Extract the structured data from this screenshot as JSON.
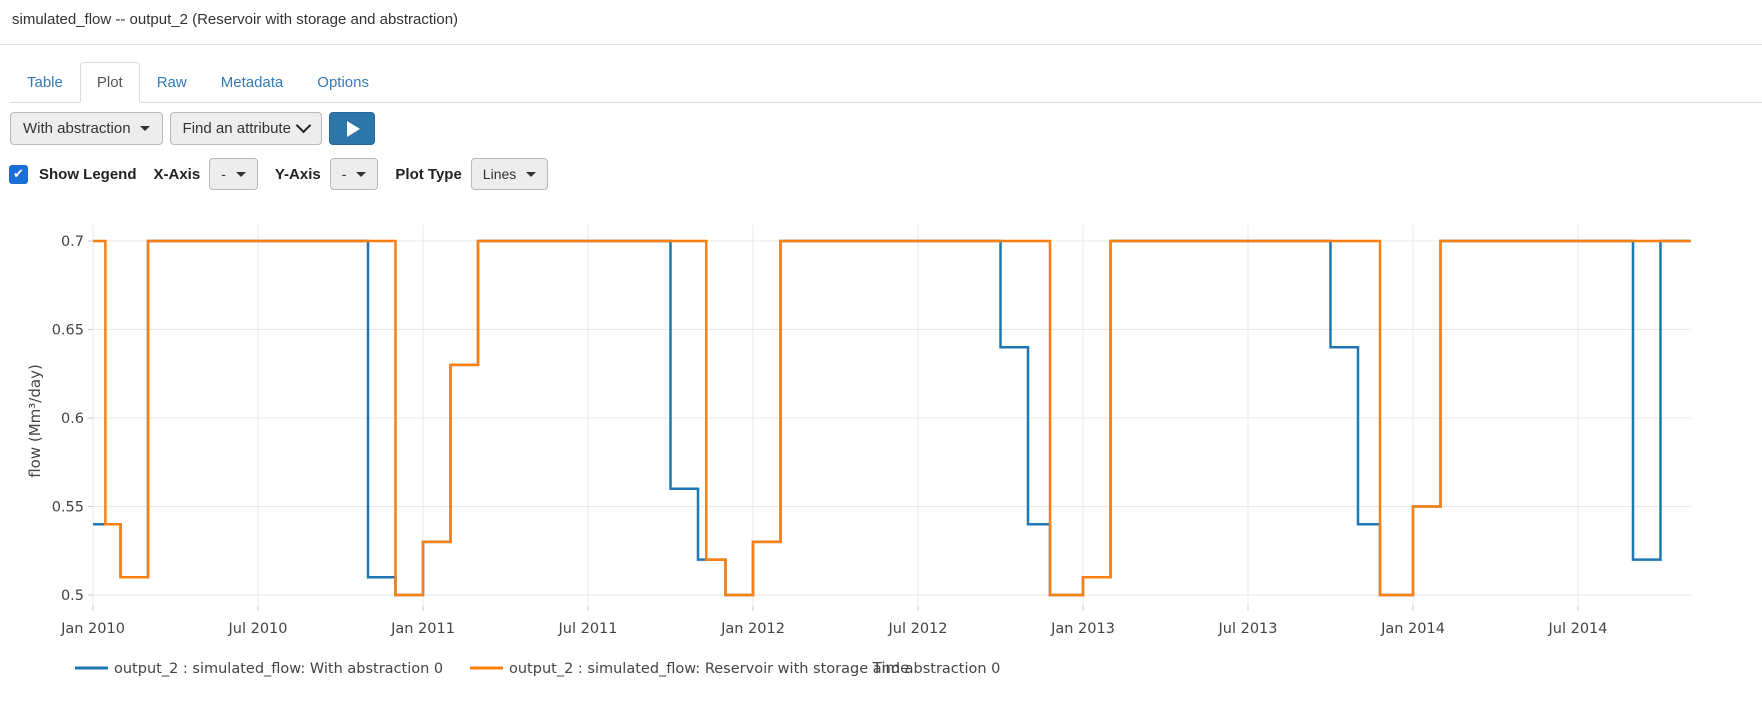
{
  "header": {
    "title": "simulated_flow -- output_2 (Reservoir with storage and abstraction)"
  },
  "tabs": [
    {
      "label": "Table",
      "active": false
    },
    {
      "label": "Plot",
      "active": true
    },
    {
      "label": "Raw",
      "active": false
    },
    {
      "label": "Metadata",
      "active": false
    },
    {
      "label": "Options",
      "active": false
    }
  ],
  "toolbar": {
    "series_dropdown": {
      "value": "With abstraction"
    },
    "attribute_dropdown": {
      "value": "Find an attribute"
    },
    "run_button": {
      "icon": "play-icon"
    }
  },
  "plot_controls": {
    "show_legend_label": "Show Legend",
    "show_legend_checked": true,
    "check_glyph": "✔",
    "x_axis_label": "X-Axis",
    "x_axis_value": "-",
    "y_axis_label": "Y-Axis",
    "y_axis_value": "-",
    "plot_type_label": "Plot Type",
    "plot_type_value": "Lines"
  },
  "colors": {
    "tab_link_blue": "#337ab7",
    "play_button_blue": "#2d76a9",
    "checkbox_blue": "#1b6ed6",
    "series_blue": "#1f77b4",
    "series_orange": "#ff7f0e",
    "grid_gray": "#e8e8e8",
    "axis_text_gray": "#444444"
  },
  "chart_data": {
    "type": "line",
    "step_mode": "hv",
    "title": "",
    "xlabel": "Time",
    "ylabel": "flow (Mm³/day)",
    "x_unit": "months since 2010-01-01",
    "xlim": [
      0,
      58.1
    ],
    "ylim": [
      0.495,
      0.7075
    ],
    "grid": true,
    "legend_position": "bottom-left",
    "x_ticks": [
      {
        "t": 0,
        "label": "Jan 2010"
      },
      {
        "t": 6,
        "label": "Jul 2010"
      },
      {
        "t": 12,
        "label": "Jan 2011"
      },
      {
        "t": 18,
        "label": "Jul 2011"
      },
      {
        "t": 24,
        "label": "Jan 2012"
      },
      {
        "t": 30,
        "label": "Jul 2012"
      },
      {
        "t": 36,
        "label": "Jan 2013"
      },
      {
        "t": 42,
        "label": "Jul 2013"
      },
      {
        "t": 48,
        "label": "Jan 2014"
      },
      {
        "t": 54,
        "label": "Jul 2014"
      }
    ],
    "y_ticks": [
      {
        "v": 0.7,
        "label": "0.7"
      },
      {
        "v": 0.65,
        "label": "0.65"
      },
      {
        "v": 0.6,
        "label": "0.6"
      },
      {
        "v": 0.55,
        "label": "0.55"
      },
      {
        "v": 0.5,
        "label": "0.5"
      }
    ],
    "series": [
      {
        "name": "output_2 : simulated_flow: With abstraction 0",
        "color": "#1f77b4",
        "points": [
          [
            0,
            0.54
          ],
          [
            1,
            0.51
          ],
          [
            2,
            0.7
          ],
          [
            10,
            0.51
          ],
          [
            11,
            0.5
          ],
          [
            12,
            0.53
          ],
          [
            13,
            0.63
          ],
          [
            14,
            0.7
          ],
          [
            21,
            0.56
          ],
          [
            22,
            0.52
          ],
          [
            23,
            0.5
          ],
          [
            24,
            0.53
          ],
          [
            25,
            0.7
          ],
          [
            33,
            0.64
          ],
          [
            34,
            0.54
          ],
          [
            34.8,
            0.5
          ],
          [
            36,
            0.51
          ],
          [
            37,
            0.7
          ],
          [
            45,
            0.64
          ],
          [
            46,
            0.54
          ],
          [
            46.8,
            0.5
          ],
          [
            48,
            0.55
          ],
          [
            49,
            0.7
          ],
          [
            56,
            0.52
          ],
          [
            57,
            0.7
          ],
          [
            58.1,
            0.7
          ]
        ]
      },
      {
        "name": "output_2 : simulated_flow: Reservoir with storage and abstraction 0",
        "color": "#ff7f0e",
        "points": [
          [
            0,
            0.7
          ],
          [
            0.45,
            0.54
          ],
          [
            1,
            0.51
          ],
          [
            2,
            0.7
          ],
          [
            11,
            0.5
          ],
          [
            12,
            0.53
          ],
          [
            13,
            0.63
          ],
          [
            14,
            0.7
          ],
          [
            22.3,
            0.52
          ],
          [
            23,
            0.5
          ],
          [
            24,
            0.53
          ],
          [
            25,
            0.7
          ],
          [
            34.8,
            0.5
          ],
          [
            36,
            0.51
          ],
          [
            37,
            0.7
          ],
          [
            46.8,
            0.5
          ],
          [
            48,
            0.55
          ],
          [
            49,
            0.7
          ],
          [
            58.1,
            0.7
          ]
        ]
      }
    ]
  }
}
